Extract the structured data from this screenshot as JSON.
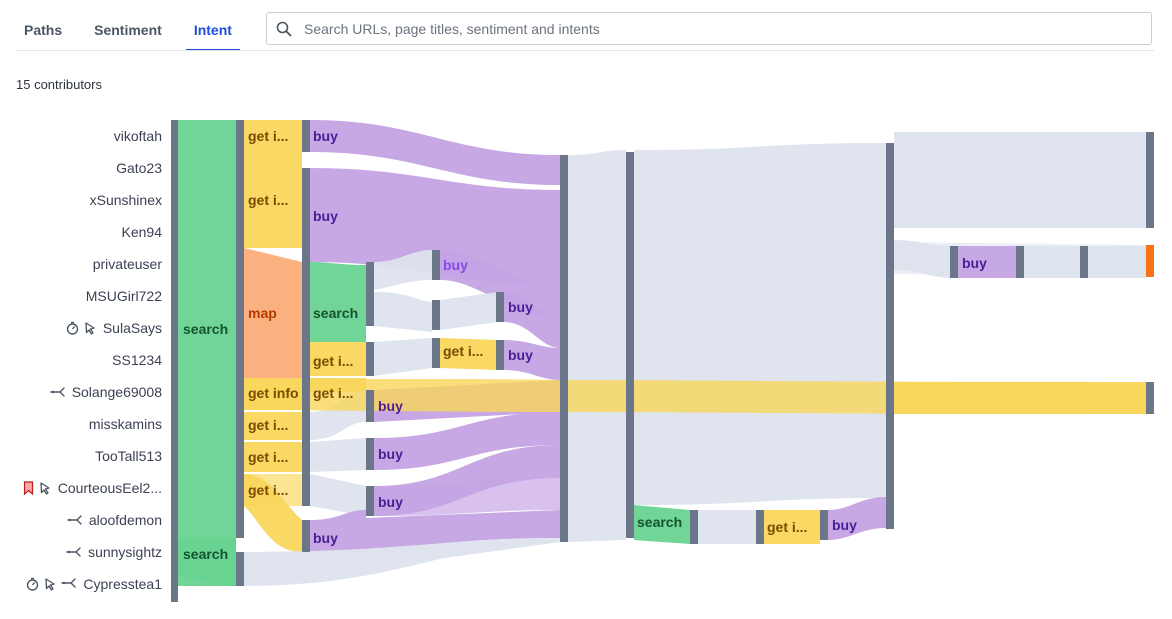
{
  "tabs": [
    {
      "label": "Paths"
    },
    {
      "label": "Sentiment"
    },
    {
      "label": "Intent"
    }
  ],
  "search": {
    "placeholder": "Search URLs, page titles, sentiment and intents"
  },
  "contributors_label": "15 contributors",
  "users": [
    {
      "name": "vikoftah",
      "icons": []
    },
    {
      "name": "Gato23",
      "icons": []
    },
    {
      "name": "xSunshinex",
      "icons": []
    },
    {
      "name": "Ken94",
      "icons": []
    },
    {
      "name": "privateuser",
      "icons": []
    },
    {
      "name": "MSUGirl722",
      "icons": []
    },
    {
      "name": "SulaSays",
      "icons": [
        "stopwatch-icon",
        "rage-click-icon"
      ]
    },
    {
      "name": "SS1234",
      "icons": []
    },
    {
      "name": "Solange69008",
      "icons": [
        "u-turn-icon"
      ]
    },
    {
      "name": "misskamins",
      "icons": []
    },
    {
      "name": "TooTall513",
      "icons": []
    },
    {
      "name": "CourteousEel2...",
      "icons": [
        "bookmark-icon",
        "rage-click-icon"
      ]
    },
    {
      "name": "aloofdemon",
      "icons": [
        "u-turn-icon"
      ]
    },
    {
      "name": "sunnysightz",
      "icons": [
        "u-turn-icon"
      ]
    },
    {
      "name": "Cypresstea1",
      "icons": [
        "stopwatch-icon",
        "rage-click-icon",
        "u-turn-icon"
      ]
    }
  ],
  "flow_labels": {
    "search": "search",
    "map": "map",
    "buy": "buy",
    "get_info": "get info",
    "get_info_short": "get i..."
  },
  "colors": {
    "accent": "#1d4ed8",
    "search": "#68d391",
    "get_info": "#f9d65c",
    "map": "#fbad78",
    "buy": "#c4a3e4",
    "neutral": "#dde3ed",
    "node_bar": "#6b7788",
    "exit": "#f97316"
  }
}
